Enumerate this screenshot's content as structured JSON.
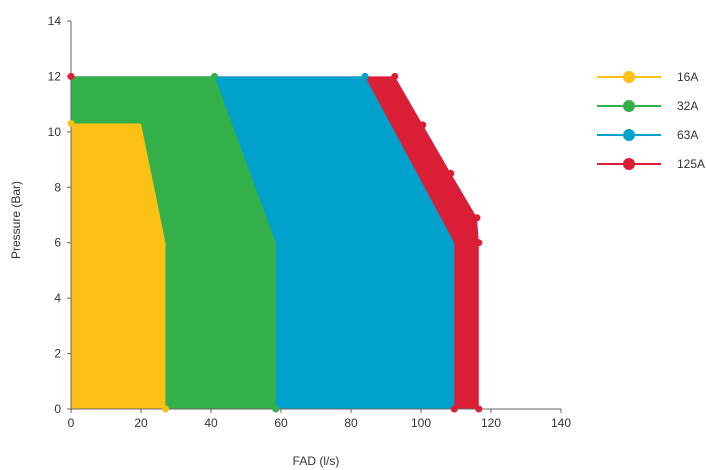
{
  "chart_data": {
    "type": "area",
    "xlabel": "FAD (l/s)",
    "ylabel": "Pressure (Bar)",
    "xlim": [
      0,
      140
    ],
    "ylim": [
      0,
      14
    ],
    "x_ticks": [
      "0",
      "20",
      "40",
      "60",
      "80",
      "100",
      "120",
      "140"
    ],
    "y_ticks": [
      "0",
      "2",
      "4",
      "6",
      "8",
      "10",
      "12",
      "14"
    ],
    "grid": false,
    "legend_position": "right",
    "series": [
      {
        "name": "125A",
        "color": "#D91E36",
        "points": [
          [
            0,
            0
          ],
          [
            0,
            12
          ],
          [
            92.5,
            12
          ],
          [
            100.5,
            10.25
          ],
          [
            108.5,
            8.5
          ],
          [
            116,
            6.9
          ],
          [
            116.5,
            6
          ],
          [
            116.5,
            0
          ]
        ],
        "markers": [
          [
            0,
            12
          ],
          [
            92.5,
            12
          ],
          [
            100.5,
            10.25
          ],
          [
            108.5,
            8.5
          ],
          [
            116,
            6.9
          ],
          [
            116.5,
            6
          ],
          [
            116.5,
            0
          ],
          [
            109.5,
            0
          ]
        ]
      },
      {
        "name": "63A",
        "color": "#00A2CB",
        "points": [
          [
            0,
            0
          ],
          [
            0,
            12
          ],
          [
            84,
            12
          ],
          [
            109.5,
            6
          ],
          [
            109.5,
            0
          ]
        ],
        "markers": [
          [
            84,
            12
          ]
        ]
      },
      {
        "name": "32A",
        "color": "#33B04A",
        "points": [
          [
            0,
            0
          ],
          [
            0,
            12
          ],
          [
            41,
            12
          ],
          [
            58.5,
            6
          ],
          [
            58.5,
            0
          ]
        ],
        "markers": [
          [
            41,
            12
          ],
          [
            58.5,
            0
          ]
        ]
      },
      {
        "name": "16A",
        "color": "#FDC015",
        "points": [
          [
            0,
            0
          ],
          [
            0,
            10.3
          ],
          [
            20,
            10.3
          ],
          [
            27,
            6
          ],
          [
            27,
            0
          ]
        ],
        "markers": [
          [
            0,
            10.3
          ],
          [
            27,
            0
          ]
        ]
      }
    ]
  }
}
